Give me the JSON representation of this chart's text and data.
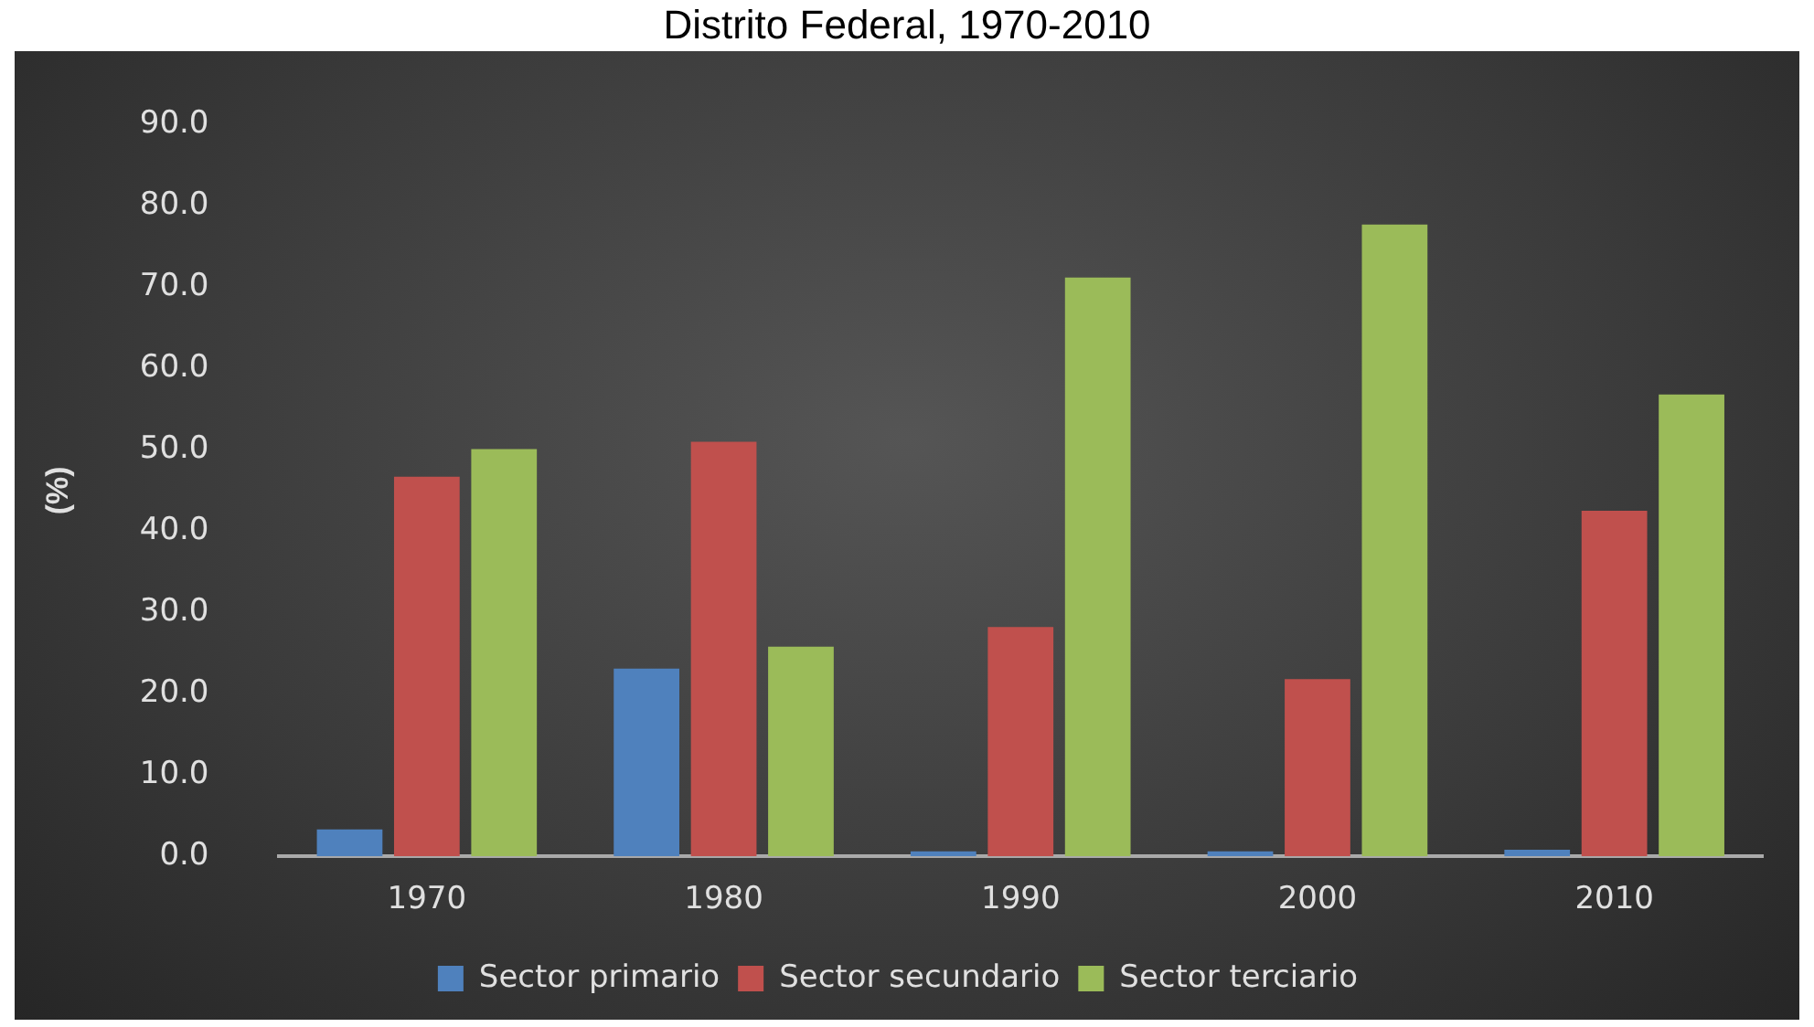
{
  "chart_data": {
    "type": "bar",
    "title": "Distrito Federal, 1970-2010",
    "ylabel": "(%)",
    "categories": [
      "1970",
      "1980",
      "1990",
      "2000",
      "2010"
    ],
    "series": [
      {
        "name": "Sector primario",
        "color": "#4f81bd",
        "values": [
          3.3,
          23.1,
          0.6,
          0.6,
          0.8
        ]
      },
      {
        "name": "Sector secundario",
        "color": "#c0504d",
        "values": [
          46.7,
          51.0,
          28.2,
          21.8,
          42.5
        ]
      },
      {
        "name": "Sector terciario",
        "color": "#9bbb59",
        "values": [
          50.1,
          25.8,
          71.2,
          77.7,
          56.8
        ]
      }
    ],
    "ylim": [
      0,
      90
    ],
    "yticks": [
      {
        "value": 0,
        "label": "0.0"
      },
      {
        "value": 10,
        "label": "10.0"
      },
      {
        "value": 20,
        "label": "20.0"
      },
      {
        "value": 30,
        "label": "30.0"
      },
      {
        "value": 40,
        "label": "40.0"
      },
      {
        "value": 50,
        "label": "50.0"
      },
      {
        "value": 60,
        "label": "60.0"
      },
      {
        "value": 70,
        "label": "70.0"
      },
      {
        "value": 80,
        "label": "80.0"
      },
      {
        "value": 90,
        "label": "90.0"
      }
    ],
    "grid": false,
    "legend": "bottom"
  }
}
